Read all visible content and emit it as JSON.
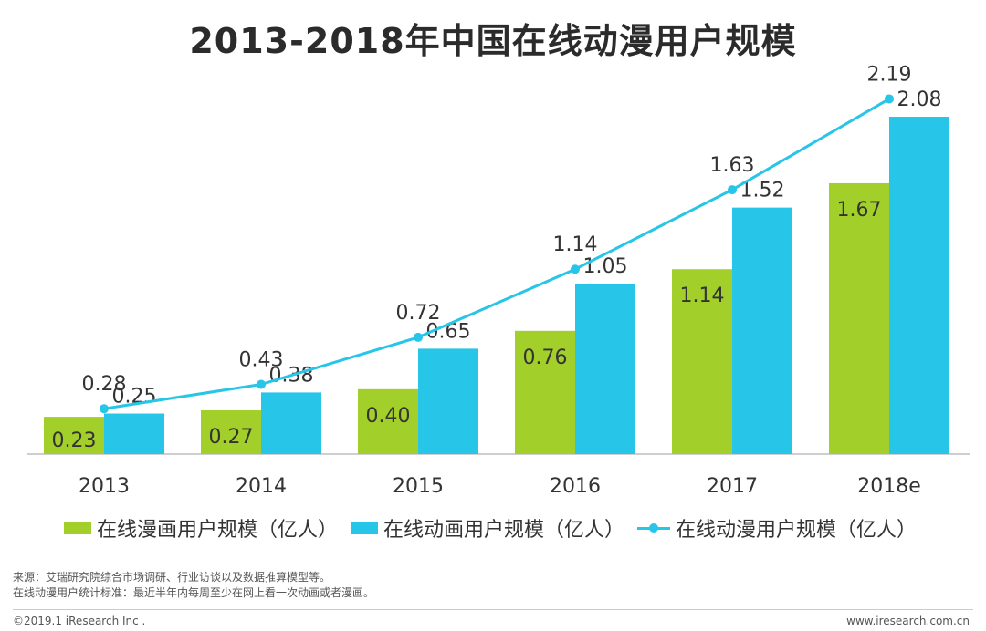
{
  "title": "2013-2018年中国在线动漫用户规模",
  "colors": {
    "comics": "#a3cf2a",
    "animation": "#27c5e8",
    "total_line": "#27c5e8",
    "axis": "#bfbfbf"
  },
  "chart_data": {
    "type": "bar",
    "title": "2013-2018年中国在线动漫用户规模",
    "categories": [
      "2013",
      "2014",
      "2015",
      "2016",
      "2017",
      "2018e"
    ],
    "series": [
      {
        "name": "在线漫画用户规模（亿人）",
        "kind": "bar",
        "values": [
          0.23,
          0.27,
          0.4,
          0.76,
          1.14,
          1.67
        ],
        "labels": [
          "0.23",
          "0.27",
          "0.40",
          "0.76",
          "1.14",
          "1.67"
        ]
      },
      {
        "name": "在线动画用户规模（亿人）",
        "kind": "bar",
        "values": [
          0.25,
          0.38,
          0.65,
          1.05,
          1.52,
          2.08
        ],
        "labels": [
          "0.25",
          "0.38",
          "0.65",
          "1.05",
          "1.52",
          "2.08"
        ]
      },
      {
        "name": "在线动漫用户规模（亿人）",
        "kind": "line",
        "values": [
          0.28,
          0.43,
          0.72,
          1.14,
          1.63,
          2.19
        ],
        "labels": [
          "0.28",
          "0.43",
          "0.72",
          "1.14",
          "1.63",
          "2.19"
        ]
      }
    ],
    "xlabel": "",
    "ylabel": "",
    "ylim": [
      0,
      2.35
    ],
    "grid": false,
    "legend": "bottom"
  },
  "legend": {
    "comics": "在线漫画用户规模（亿人）",
    "animation": "在线动画用户规模（亿人）",
    "total": "在线动漫用户规模（亿人）"
  },
  "source_note": "来源：艾瑞研究院综合市场调研、行业访谈以及数据推算模型等。",
  "definition_note": "在线动漫用户统计标准：最近半年内每周至少在网上看一次动画或者漫画。",
  "footer": {
    "copyright": "©2019.1 iResearch Inc .",
    "website": "www.iresearch.com.cn"
  }
}
